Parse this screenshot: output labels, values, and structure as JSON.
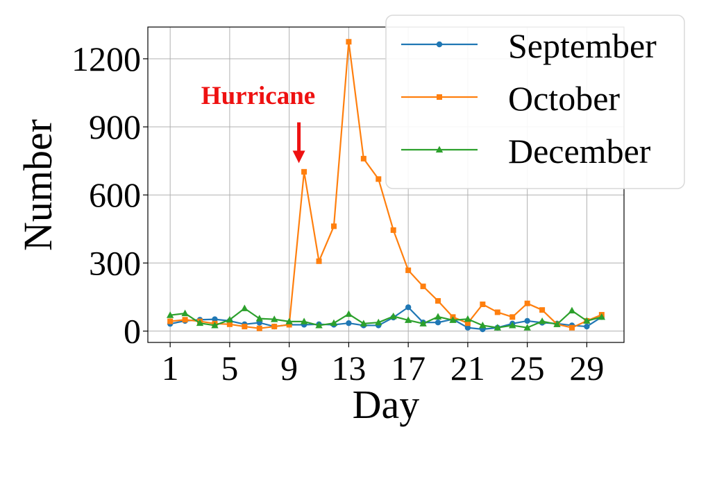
{
  "chart_data": {
    "type": "line",
    "xlabel": "Day",
    "ylabel": "Number",
    "xlim": [
      -0.5,
      31.5
    ],
    "ylim": [
      -50,
      1340
    ],
    "x_ticks": [
      1,
      5,
      9,
      13,
      17,
      21,
      25,
      29
    ],
    "y_ticks": [
      0,
      300,
      600,
      900,
      1200
    ],
    "grid": true,
    "legend_position": "top-right",
    "x": [
      1,
      2,
      3,
      4,
      5,
      6,
      7,
      8,
      9,
      10,
      11,
      12,
      13,
      14,
      15,
      16,
      17,
      18,
      19,
      20,
      21,
      22,
      23,
      24,
      25,
      26,
      27,
      28,
      29,
      30
    ],
    "series": [
      {
        "name": "September",
        "color": "#1f77b4",
        "marker": "circle",
        "values": [
          32,
          45,
          50,
          52,
          45,
          30,
          37,
          20,
          28,
          28,
          30,
          28,
          35,
          25,
          25,
          60,
          105,
          38,
          38,
          52,
          15,
          8,
          15,
          33,
          45,
          37,
          33,
          25,
          20,
          62
        ]
      },
      {
        "name": "October",
        "color": "#ff7f0e",
        "marker": "square",
        "values": [
          43,
          50,
          43,
          33,
          30,
          20,
          12,
          20,
          28,
          702,
          308,
          462,
          1275,
          760,
          670,
          445,
          268,
          197,
          133,
          62,
          35,
          118,
          83,
          62,
          122,
          93,
          30,
          15,
          45,
          72
        ]
      },
      {
        "name": "December",
        "color": "#2ca02c",
        "marker": "triangle",
        "values": [
          70,
          78,
          35,
          25,
          50,
          100,
          55,
          52,
          42,
          42,
          25,
          35,
          75,
          33,
          38,
          65,
          48,
          33,
          63,
          48,
          53,
          25,
          15,
          25,
          15,
          43,
          30,
          90,
          45,
          62
        ]
      }
    ],
    "annotation": {
      "text": "Hurricane",
      "color": "#ee1111",
      "arrow_x": 9.65,
      "arrow_y_from": 920,
      "arrow_y_to": 740
    }
  }
}
